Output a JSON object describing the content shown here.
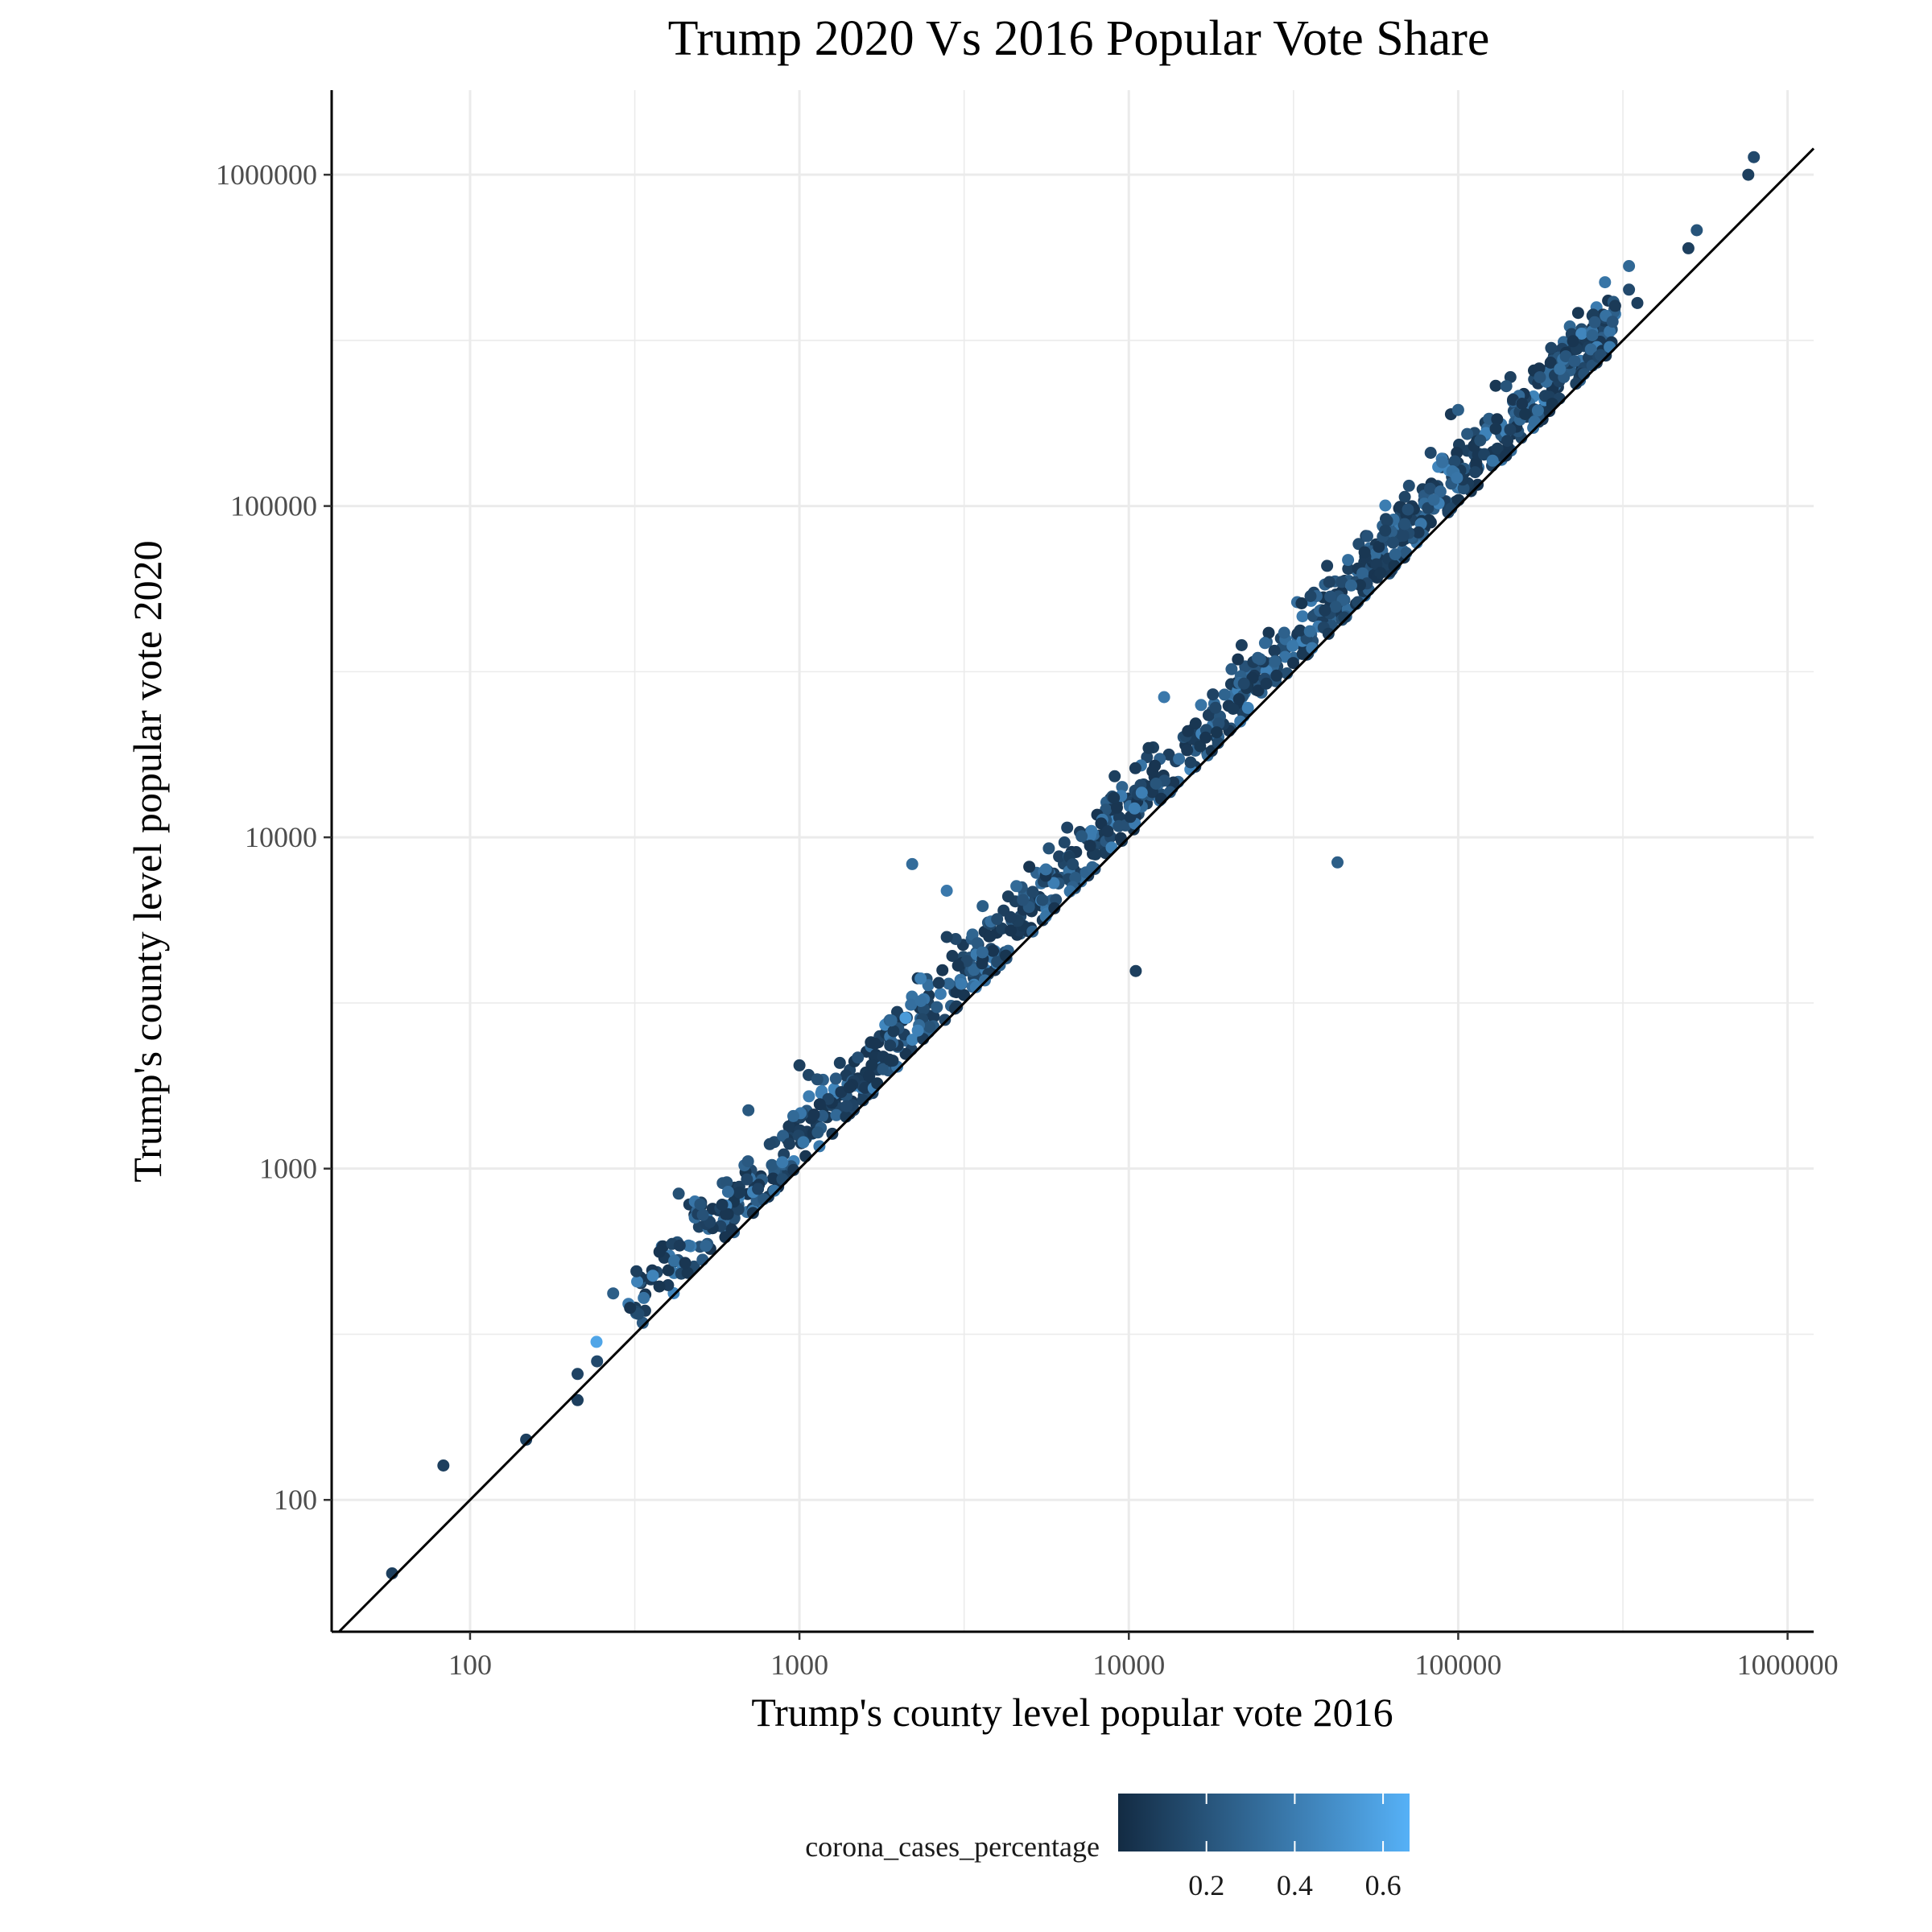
{
  "chart_data": {
    "type": "scatter",
    "title": "Trump 2020 Vs 2016 Popular Vote Share",
    "xlabel": "Trump's county level popular vote 2016",
    "ylabel": "Trump's county level popular vote 2020",
    "x_scale": "log10",
    "y_scale": "log10",
    "xlim": [
      38,
      1200000
    ],
    "ylim": [
      40,
      1800000
    ],
    "x_ticks": [
      "100",
      "1000",
      "10000",
      "100000",
      "1000000"
    ],
    "y_ticks": [
      "100",
      "1000",
      "10000",
      "100000",
      "1000000"
    ],
    "grid": true,
    "reference_line": "y = x",
    "legend": {
      "title": "corona_cases_percentage",
      "position": "bottom",
      "type": "colorbar",
      "low_color": "#132B43",
      "high_color": "#56B1F7",
      "range": [
        0.0,
        0.66
      ],
      "ticks": [
        "0.2",
        "0.4",
        "0.6"
      ]
    },
    "outliers": [
      {
        "x": 58,
        "y": 60,
        "c": 0.1
      },
      {
        "x": 83,
        "y": 127,
        "c": 0.1
      },
      {
        "x": 148,
        "y": 152,
        "c": 0.1
      },
      {
        "x": 212,
        "y": 240,
        "c": 0.12
      },
      {
        "x": 212,
        "y": 200,
        "c": 0.1
      },
      {
        "x": 242,
        "y": 300,
        "c": 0.6
      },
      {
        "x": 243,
        "y": 262,
        "c": 0.15
      },
      {
        "x": 272,
        "y": 420,
        "c": 0.25
      },
      {
        "x": 320,
        "y": 490,
        "c": 0.1
      },
      {
        "x": 430,
        "y": 840,
        "c": 0.18
      },
      {
        "x": 500,
        "y": 780,
        "c": 0.2
      },
      {
        "x": 700,
        "y": 1500,
        "c": 0.22
      },
      {
        "x": 1000,
        "y": 2050,
        "c": 0.1
      },
      {
        "x": 2200,
        "y": 8300,
        "c": 0.32
      },
      {
        "x": 2800,
        "y": 6900,
        "c": 0.38
      },
      {
        "x": 2800,
        "y": 5000,
        "c": 0.1
      },
      {
        "x": 2100,
        "y": 2850,
        "c": 0.55
      },
      {
        "x": 1900,
        "y": 2800,
        "c": 0.3
      },
      {
        "x": 3600,
        "y": 6200,
        "c": 0.25
      },
      {
        "x": 5600,
        "y": 8000,
        "c": 0.35
      },
      {
        "x": 6500,
        "y": 10700,
        "c": 0.12
      },
      {
        "x": 10500,
        "y": 3950,
        "c": 0.1
      },
      {
        "x": 12800,
        "y": 26500,
        "c": 0.38
      },
      {
        "x": 18000,
        "y": 27000,
        "c": 0.12
      },
      {
        "x": 22000,
        "y": 38000,
        "c": 0.1
      },
      {
        "x": 43000,
        "y": 8400,
        "c": 0.25
      },
      {
        "x": 40000,
        "y": 66000,
        "c": 0.1
      },
      {
        "x": 100000,
        "y": 195000,
        "c": 0.25
      },
      {
        "x": 140000,
        "y": 230000,
        "c": 0.2
      },
      {
        "x": 330000,
        "y": 530000,
        "c": 0.3
      },
      {
        "x": 330000,
        "y": 450000,
        "c": 0.15
      },
      {
        "x": 350000,
        "y": 410000,
        "c": 0.1
      },
      {
        "x": 500000,
        "y": 600000,
        "c": 0.1
      },
      {
        "x": 530000,
        "y": 680000,
        "c": 0.2
      },
      {
        "x": 760000,
        "y": 1000000,
        "c": 0.1
      },
      {
        "x": 790000,
        "y": 1130000,
        "c": 0.15
      }
    ],
    "cluster": {
      "x_range": [
        300,
        300000
      ],
      "count": 1100,
      "median_ratio": 1.22,
      "ratio_spread_log10": 0.06,
      "color_range": [
        0.05,
        0.45
      ],
      "seed": 20201103
    }
  }
}
